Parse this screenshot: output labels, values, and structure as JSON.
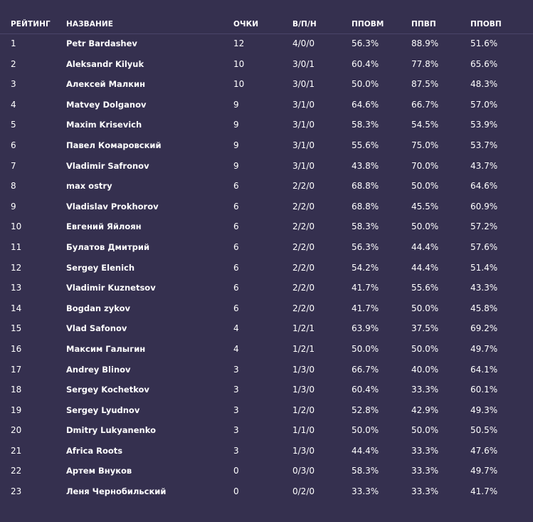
{
  "table": {
    "headers": {
      "rank": "РЕЙТИНГ",
      "name": "НАЗВАНИЕ",
      "points": "ОЧКИ",
      "wdl": "В/П/Н",
      "pct1": "ППОВМ",
      "pct2": "ППВП",
      "pct3": "ППОВП"
    },
    "rows": [
      {
        "rank": "1",
        "name": "Petr Bardashev",
        "points": "12",
        "wdl": "4/0/0",
        "pct1": "56.3%",
        "pct2": "88.9%",
        "pct3": "51.6%"
      },
      {
        "rank": "2",
        "name": "Aleksandr Kilyuk",
        "points": "10",
        "wdl": "3/0/1",
        "pct1": "60.4%",
        "pct2": "77.8%",
        "pct3": "65.6%"
      },
      {
        "rank": "3",
        "name": "Алексей Малкин",
        "points": "10",
        "wdl": "3/0/1",
        "pct1": "50.0%",
        "pct2": "87.5%",
        "pct3": "48.3%"
      },
      {
        "rank": "4",
        "name": "Matvey Dolganov",
        "points": "9",
        "wdl": "3/1/0",
        "pct1": "64.6%",
        "pct2": "66.7%",
        "pct3": "57.0%"
      },
      {
        "rank": "5",
        "name": "Maxim Krisevich",
        "points": "9",
        "wdl": "3/1/0",
        "pct1": "58.3%",
        "pct2": "54.5%",
        "pct3": "53.9%"
      },
      {
        "rank": "6",
        "name": "Павел Комаровский",
        "points": "9",
        "wdl": "3/1/0",
        "pct1": "55.6%",
        "pct2": "75.0%",
        "pct3": "53.7%"
      },
      {
        "rank": "7",
        "name": "Vladimir Safronov",
        "points": "9",
        "wdl": "3/1/0",
        "pct1": "43.8%",
        "pct2": "70.0%",
        "pct3": "43.7%"
      },
      {
        "rank": "8",
        "name": "max ostry",
        "points": "6",
        "wdl": "2/2/0",
        "pct1": "68.8%",
        "pct2": "50.0%",
        "pct3": "64.6%"
      },
      {
        "rank": "9",
        "name": "Vladislav Prokhorov",
        "points": "6",
        "wdl": "2/2/0",
        "pct1": "68.8%",
        "pct2": "45.5%",
        "pct3": "60.9%"
      },
      {
        "rank": "10",
        "name": "Евгений Яйлоян",
        "points": "6",
        "wdl": "2/2/0",
        "pct1": "58.3%",
        "pct2": "50.0%",
        "pct3": "57.2%"
      },
      {
        "rank": "11",
        "name": "Булатов Дмитрий",
        "points": "6",
        "wdl": "2/2/0",
        "pct1": "56.3%",
        "pct2": "44.4%",
        "pct3": "57.6%"
      },
      {
        "rank": "12",
        "name": "Sergey Elenich",
        "points": "6",
        "wdl": "2/2/0",
        "pct1": "54.2%",
        "pct2": "44.4%",
        "pct3": "51.4%"
      },
      {
        "rank": "13",
        "name": "Vladimir Kuznetsov",
        "points": "6",
        "wdl": "2/2/0",
        "pct1": "41.7%",
        "pct2": "55.6%",
        "pct3": "43.3%"
      },
      {
        "rank": "14",
        "name": "Bogdan zykov",
        "points": "6",
        "wdl": "2/2/0",
        "pct1": "41.7%",
        "pct2": "50.0%",
        "pct3": "45.8%"
      },
      {
        "rank": "15",
        "name": "Vlad Safonov",
        "points": "4",
        "wdl": "1/2/1",
        "pct1": "63.9%",
        "pct2": "37.5%",
        "pct3": "69.2%"
      },
      {
        "rank": "16",
        "name": "Максим Галыгин",
        "points": "4",
        "wdl": "1/2/1",
        "pct1": "50.0%",
        "pct2": "50.0%",
        "pct3": "49.7%"
      },
      {
        "rank": "17",
        "name": "Andrey Blinov",
        "points": "3",
        "wdl": "1/3/0",
        "pct1": "66.7%",
        "pct2": "40.0%",
        "pct3": "64.1%"
      },
      {
        "rank": "18",
        "name": "Sergey Kochetkov",
        "points": "3",
        "wdl": "1/3/0",
        "pct1": "60.4%",
        "pct2": "33.3%",
        "pct3": "60.1%"
      },
      {
        "rank": "19",
        "name": "Sergey Lyudnov",
        "points": "3",
        "wdl": "1/2/0",
        "pct1": "52.8%",
        "pct2": "42.9%",
        "pct3": "49.3%"
      },
      {
        "rank": "20",
        "name": "Dmitry Lukyanenko",
        "points": "3",
        "wdl": "1/1/0",
        "pct1": "50.0%",
        "pct2": "50.0%",
        "pct3": "50.5%"
      },
      {
        "rank": "21",
        "name": "Africa Roots",
        "points": "3",
        "wdl": "1/3/0",
        "pct1": "44.4%",
        "pct2": "33.3%",
        "pct3": "47.6%"
      },
      {
        "rank": "22",
        "name": "Артем Внуков",
        "points": "0",
        "wdl": "0/3/0",
        "pct1": "58.3%",
        "pct2": "33.3%",
        "pct3": "49.7%"
      },
      {
        "rank": "23",
        "name": "Леня Чернобильский",
        "points": "0",
        "wdl": "0/2/0",
        "pct1": "33.3%",
        "pct2": "33.3%",
        "pct3": "41.7%"
      }
    ]
  },
  "colors": {
    "background": "#35304f",
    "text": "#ffffff",
    "divider": "#4a4468"
  }
}
